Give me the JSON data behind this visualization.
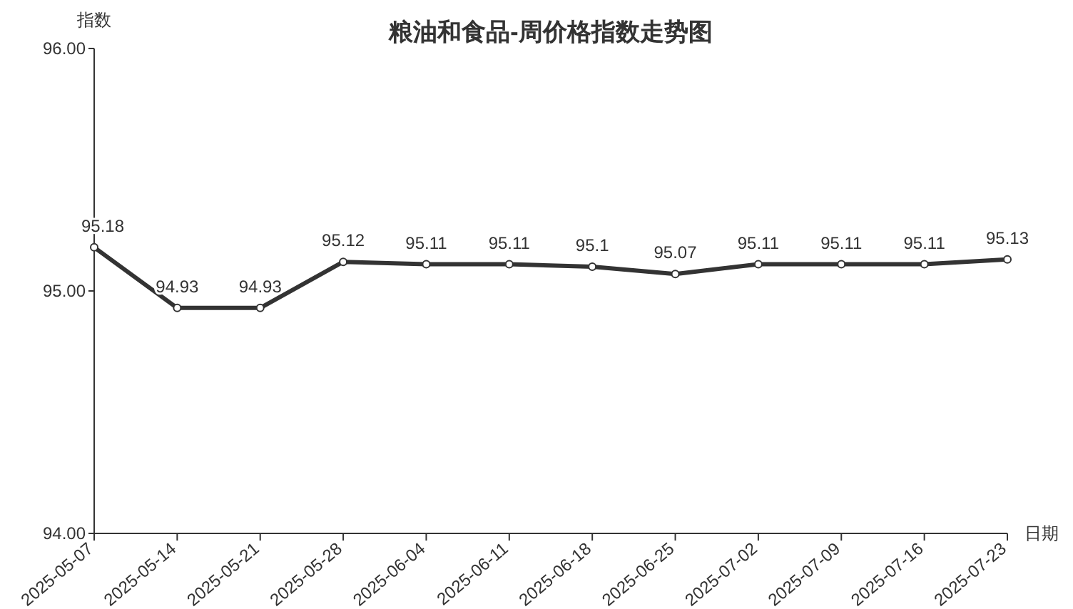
{
  "chart_data": {
    "type": "line",
    "title": "粮油和食品-周价格指数走势图",
    "xlabel": "日期",
    "ylabel": "指数",
    "categories": [
      "2025-05-07",
      "2025-05-14",
      "2025-05-21",
      "2025-05-28",
      "2025-06-04",
      "2025-06-11",
      "2025-06-18",
      "2025-06-25",
      "2025-07-02",
      "2025-07-09",
      "2025-07-16",
      "2025-07-23"
    ],
    "series": [
      {
        "color": "#333333",
        "values": [
          95.18,
          94.93,
          94.93,
          95.12,
          95.11,
          95.11,
          95.1,
          95.07,
          95.11,
          95.11,
          95.11,
          95.13
        ]
      }
    ],
    "ylim": [
      94,
      96
    ],
    "yticks": [
      {
        "value": 94,
        "label": "94.00"
      },
      {
        "value": 95,
        "label": "95.00"
      },
      {
        "value": 96,
        "label": "96.00"
      }
    ],
    "data_labels": true,
    "marker": "circle",
    "line_style": "solid"
  }
}
